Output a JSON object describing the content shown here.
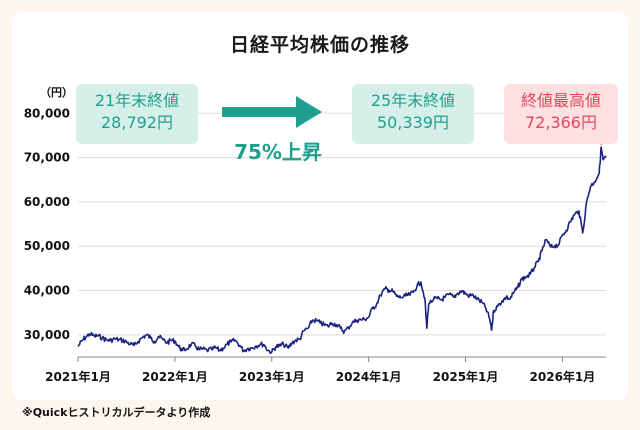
{
  "title": "日経平均株価の推移",
  "footnote": "※Quickヒストリカルデータより作成",
  "callouts": {
    "start": {
      "line1": "21年末終値",
      "line2": "28,792円"
    },
    "end": {
      "line1": "25年末終値",
      "line2": "50,339円"
    },
    "high": {
      "line1": "終値最高値",
      "line2": "72,366円"
    },
    "growth": "75%上昇"
  },
  "colors": {
    "line": "#1a237e",
    "teal": "#1fa08e",
    "teal_bg": "#d7efe9",
    "pink": "#e4475c",
    "pink_bg": "#fde0e2",
    "grid": "#dddddd",
    "marker": "#e4475c"
  },
  "chart_data": {
    "type": "line",
    "title": "日経平均株価の推移",
    "y_unit_label": "（円）",
    "ylim": [
      25000,
      83000
    ],
    "yticks": [
      30000,
      40000,
      50000,
      60000,
      70000,
      80000
    ],
    "ytick_labels": [
      "30,000",
      "40,000",
      "50,000",
      "60,000",
      "70,000",
      "80,000"
    ],
    "xlim": [
      2021.0,
      2026.45
    ],
    "xticks": [
      2021,
      2022,
      2023,
      2024,
      2025,
      2026
    ],
    "xtick_labels": [
      "2021年1月",
      "2022年1月",
      "2023年1月",
      "2024年1月",
      "2025年1月",
      "2026年1月"
    ],
    "grid": "horizontal",
    "series": [
      {
        "x": [
          2021.0,
          2021.04,
          2021.08,
          2021.12,
          2021.17,
          2021.21,
          2021.25,
          2021.29,
          2021.33,
          2021.38,
          2021.42,
          2021.46,
          2021.5,
          2021.54,
          2021.58,
          2021.62,
          2021.67,
          2021.71,
          2021.75,
          2021.79,
          2021.83,
          2021.88,
          2021.92,
          2021.96,
          2022.0,
          2022.04,
          2022.08,
          2022.12,
          2022.17,
          2022.21,
          2022.25,
          2022.29,
          2022.33,
          2022.38,
          2022.42,
          2022.46,
          2022.5,
          2022.54,
          2022.58,
          2022.62,
          2022.67,
          2022.71,
          2022.75,
          2022.79,
          2022.83,
          2022.88,
          2022.92,
          2022.96,
          2023.0,
          2023.04,
          2023.08,
          2023.12,
          2023.17,
          2023.21,
          2023.25,
          2023.29,
          2023.33,
          2023.38,
          2023.42,
          2023.46,
          2023.5,
          2023.54,
          2023.58,
          2023.62,
          2023.67,
          2023.71,
          2023.75,
          2023.79,
          2023.83,
          2023.88,
          2023.92,
          2023.96,
          2024.0,
          2024.04,
          2024.08,
          2024.12,
          2024.17,
          2024.21,
          2024.25,
          2024.29,
          2024.33,
          2024.38,
          2024.42,
          2024.46,
          2024.5,
          2024.54,
          2024.58,
          2024.6,
          2024.62,
          2024.67,
          2024.71,
          2024.75,
          2024.79,
          2024.83,
          2024.88,
          2024.92,
          2024.96,
          2025.0,
          2025.04,
          2025.08,
          2025.12,
          2025.17,
          2025.21,
          2025.25,
          2025.27,
          2025.29,
          2025.33,
          2025.38,
          2025.42,
          2025.46,
          2025.5,
          2025.54,
          2025.58,
          2025.62,
          2025.67,
          2025.71,
          2025.75,
          2025.79,
          2025.83,
          2025.88,
          2025.92,
          2025.96,
          2026.0,
          2026.04,
          2026.08,
          2026.12,
          2026.17,
          2026.21,
          2026.25,
          2026.29,
          2026.33,
          2026.38,
          2026.4,
          2026.42,
          2026.45
        ],
        "y": [
          27400,
          28600,
          29500,
          30200,
          29700,
          29800,
          29300,
          28900,
          28700,
          29100,
          28900,
          28800,
          28400,
          27900,
          27600,
          28500,
          29500,
          30000,
          29300,
          28500,
          29600,
          28900,
          28200,
          28800,
          28600,
          27300,
          26500,
          26800,
          27900,
          27500,
          26700,
          26800,
          26500,
          26700,
          27100,
          26500,
          27000,
          27900,
          28400,
          28800,
          27600,
          26400,
          26900,
          27000,
          27400,
          27900,
          27800,
          26500,
          26100,
          27300,
          27500,
          27900,
          27000,
          28200,
          28800,
          29000,
          30900,
          31600,
          33300,
          33200,
          32700,
          32300,
          31900,
          32700,
          32300,
          31500,
          30700,
          31600,
          32700,
          33300,
          33400,
          33500,
          34000,
          36000,
          36800,
          38900,
          40400,
          40100,
          39800,
          38700,
          38400,
          38800,
          39000,
          39600,
          41100,
          41900,
          38200,
          31500,
          37000,
          38000,
          38200,
          37900,
          38500,
          39100,
          38500,
          39400,
          39900,
          39300,
          38800,
          38900,
          38100,
          37300,
          36000,
          33500,
          31100,
          35500,
          36400,
          37700,
          38500,
          38100,
          39600,
          40700,
          42600,
          43000,
          43700,
          45200,
          46500,
          49000,
          51500,
          49800,
          50100,
          50339,
          52500,
          53600,
          55500,
          57000,
          58000,
          53000,
          60000,
          63500,
          64500,
          66500,
          72366,
          69500,
          70000
        ]
      }
    ],
    "annotations": [
      {
        "label": "21年末終値",
        "value": "28,792円"
      },
      {
        "label": "25年末終値",
        "value": "50,339円"
      },
      {
        "label": "終値最高値",
        "value": "72,366円"
      },
      {
        "label": "上昇率",
        "value": "75%上昇"
      }
    ]
  }
}
